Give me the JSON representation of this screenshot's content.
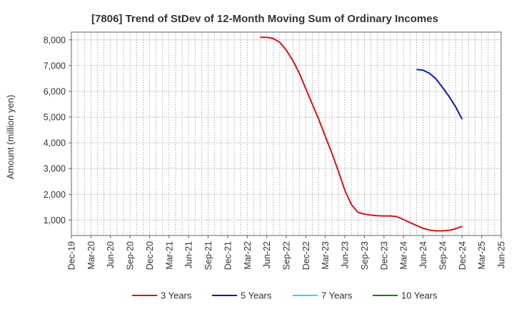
{
  "chart_data": {
    "type": "line",
    "title": "[7806]  Trend of StDev of 12-Month Moving Sum of Ordinary Incomes",
    "ylabel": "Amount (million yen)",
    "xlabel": "",
    "ylim": [
      400,
      8300
    ],
    "y_ticks": [
      1000,
      2000,
      3000,
      4000,
      5000,
      6000,
      7000,
      8000
    ],
    "y_tick_labels": [
      "1,000",
      "2,000",
      "3,000",
      "4,000",
      "5,000",
      "6,000",
      "7,000",
      "8,000"
    ],
    "x_range": [
      "2019-12",
      "2025-06"
    ],
    "x_tick_labels": [
      "Dec-19",
      "Mar-20",
      "Jun-20",
      "Sep-20",
      "Dec-20",
      "Mar-21",
      "Jun-21",
      "Sep-21",
      "Dec-21",
      "Mar-22",
      "Jun-22",
      "Sep-22",
      "Dec-22",
      "Mar-23",
      "Jun-23",
      "Sep-23",
      "Dec-23",
      "Mar-24",
      "Jun-24",
      "Sep-24",
      "Dec-24",
      "Mar-25",
      "Jun-25"
    ],
    "grid": true,
    "legend_position": "bottom",
    "series": [
      {
        "name": "3 Years",
        "color": "#dd1111",
        "points": [
          [
            "2022-05",
            8100
          ],
          [
            "2022-06",
            8100
          ],
          [
            "2022-07",
            8050
          ],
          [
            "2022-08",
            7900
          ],
          [
            "2022-09",
            7600
          ],
          [
            "2022-10",
            7200
          ],
          [
            "2022-11",
            6700
          ],
          [
            "2022-12",
            6100
          ],
          [
            "2023-01",
            5500
          ],
          [
            "2023-02",
            4900
          ],
          [
            "2023-03",
            4250
          ],
          [
            "2023-04",
            3600
          ],
          [
            "2023-05",
            2900
          ],
          [
            "2023-06",
            2150
          ],
          [
            "2023-07",
            1600
          ],
          [
            "2023-08",
            1300
          ],
          [
            "2023-09",
            1230
          ],
          [
            "2023-10",
            1190
          ],
          [
            "2023-11",
            1170
          ],
          [
            "2023-12",
            1160
          ],
          [
            "2024-01",
            1160
          ],
          [
            "2024-02",
            1130
          ],
          [
            "2024-03",
            1020
          ],
          [
            "2024-04",
            900
          ],
          [
            "2024-05",
            790
          ],
          [
            "2024-06",
            680
          ],
          [
            "2024-07",
            610
          ],
          [
            "2024-08",
            580
          ],
          [
            "2024-09",
            580
          ],
          [
            "2024-10",
            600
          ],
          [
            "2024-11",
            660
          ],
          [
            "2024-12",
            760
          ]
        ]
      },
      {
        "name": "5 Years",
        "color": "#0a14c8",
        "points": [
          [
            "2024-05",
            6850
          ],
          [
            "2024-06",
            6820
          ],
          [
            "2024-07",
            6700
          ],
          [
            "2024-08",
            6480
          ],
          [
            "2024-09",
            6150
          ],
          [
            "2024-10",
            5800
          ],
          [
            "2024-11",
            5400
          ],
          [
            "2024-12",
            4920
          ]
        ]
      },
      {
        "name": "7 Years",
        "color": "#22ddee",
        "points": []
      },
      {
        "name": "10 Years",
        "color": "#1a7a1a",
        "points": []
      }
    ]
  }
}
